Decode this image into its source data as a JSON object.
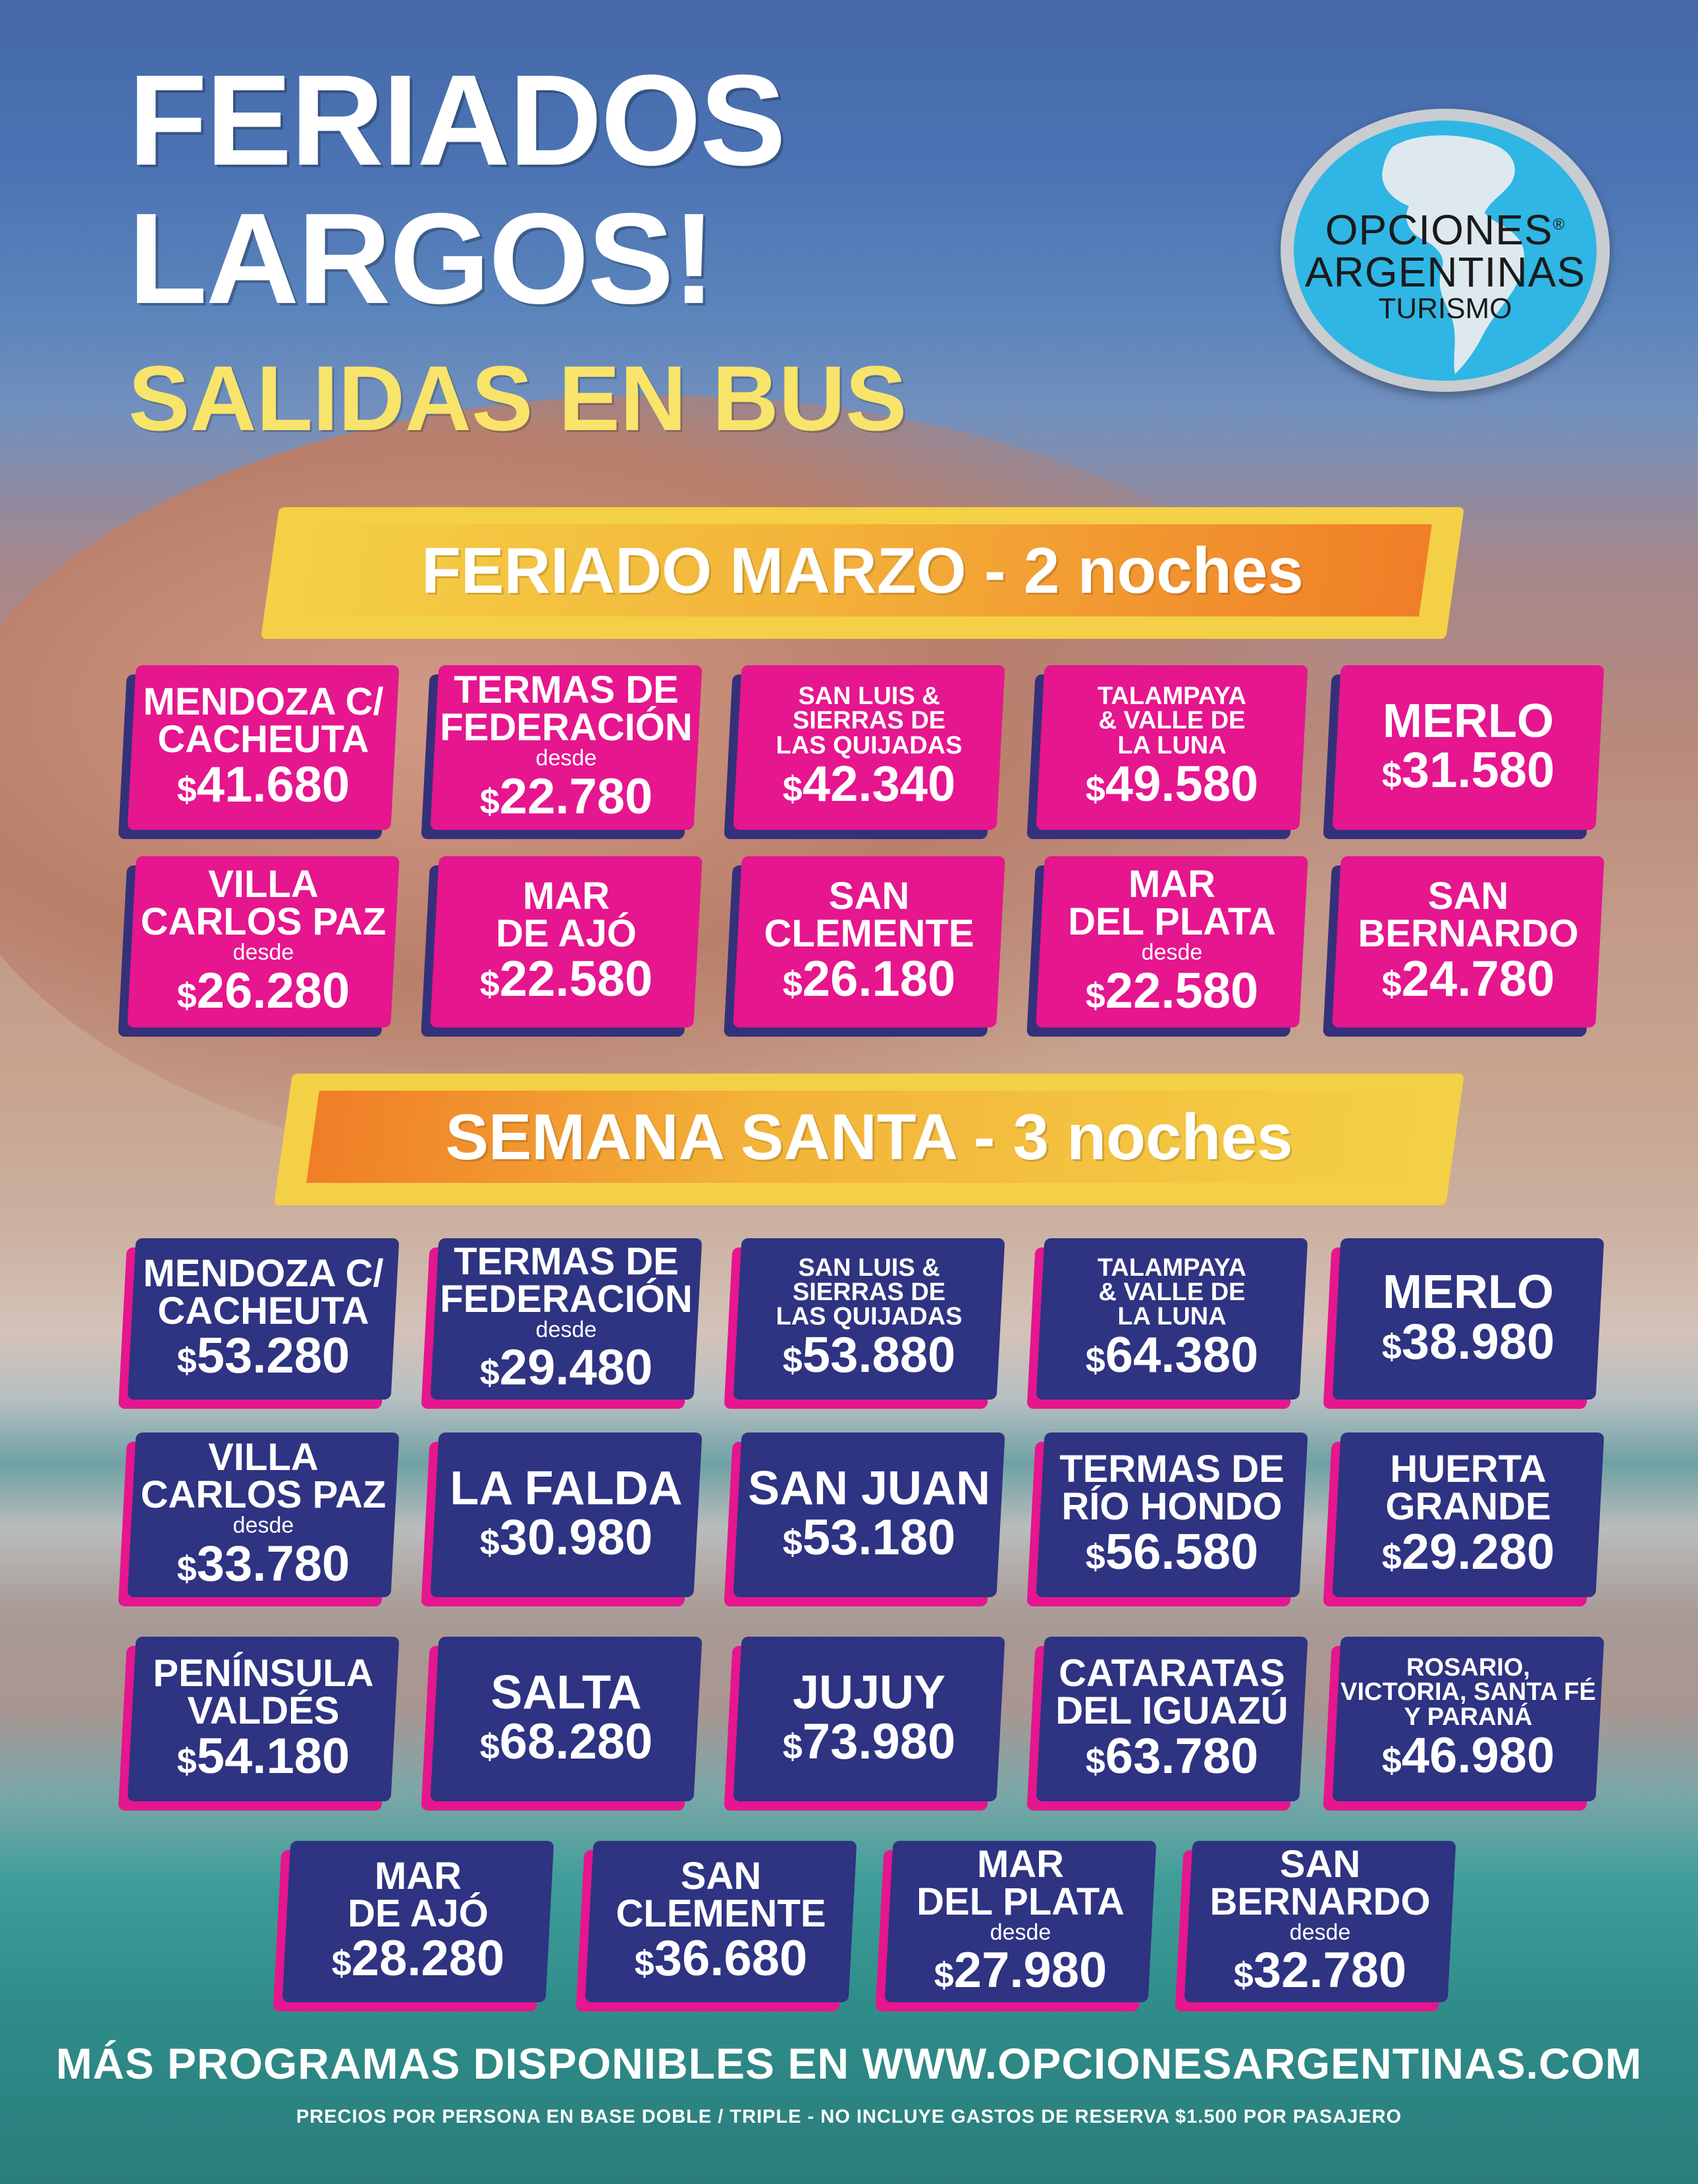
{
  "header": {
    "title_line1": "FERIADOS",
    "title_line2": "LARGOS!",
    "subtitle": "SALIDAS EN BUS"
  },
  "logo": {
    "line1": "OPCIONES",
    "registered": "®",
    "line2": "ARGENTINAS",
    "line3": "TURISMO"
  },
  "colors": {
    "pink": "#e5168e",
    "navy": "#2e3382",
    "yellow": "#f4d046",
    "orange": "#f07e27"
  },
  "sections": [
    {
      "title": "FERIADO MARZO - 2 noches",
      "cards": [
        {
          "name": "MENDOZA C/\nCACHEUTA",
          "desde": "",
          "currency": "$",
          "price": "41.680"
        },
        {
          "name": "TERMAS DE\nFEDERACIÓN",
          "desde": "desde",
          "currency": "$",
          "price": "22.780"
        },
        {
          "name": "SAN LUIS &\nSIERRAS DE\nLAS QUIJADAS",
          "desde": "",
          "currency": "$",
          "price": "42.340"
        },
        {
          "name": "TALAMPAYA\n& VALLE DE\nLA LUNA",
          "desde": "",
          "currency": "$",
          "price": "49.580"
        },
        {
          "name": "MERLO",
          "desde": "",
          "currency": "$",
          "price": "31.580"
        },
        {
          "name": "VILLA\nCARLOS PAZ",
          "desde": "desde",
          "currency": "$",
          "price": "26.280"
        },
        {
          "name": "MAR\nDE AJÓ",
          "desde": "",
          "currency": "$",
          "price": "22.580"
        },
        {
          "name": "SAN\nCLEMENTE",
          "desde": "",
          "currency": "$",
          "price": "26.180"
        },
        {
          "name": "MAR\nDEL PLATA",
          "desde": "desde",
          "currency": "$",
          "price": "22.580"
        },
        {
          "name": "SAN\nBERNARDO",
          "desde": "",
          "currency": "$",
          "price": "24.780"
        }
      ]
    },
    {
      "title": "SEMANA SANTA - 3 noches",
      "cards": [
        {
          "name": "MENDOZA C/\nCACHEUTA",
          "desde": "",
          "currency": "$",
          "price": "53.280"
        },
        {
          "name": "TERMAS DE\nFEDERACIÓN",
          "desde": "desde",
          "currency": "$",
          "price": "29.480"
        },
        {
          "name": "SAN LUIS &\nSIERRAS DE\nLAS QUIJADAS",
          "desde": "",
          "currency": "$",
          "price": "53.880"
        },
        {
          "name": "TALAMPAYA\n& VALLE DE\nLA LUNA",
          "desde": "",
          "currency": "$",
          "price": "64.380"
        },
        {
          "name": "MERLO",
          "desde": "",
          "currency": "$",
          "price": "38.980"
        },
        {
          "name": "VILLA\nCARLOS PAZ",
          "desde": "desde",
          "currency": "$",
          "price": "33.780"
        },
        {
          "name": "LA FALDA",
          "desde": "",
          "currency": "$",
          "price": "30.980"
        },
        {
          "name": "SAN JUAN",
          "desde": "",
          "currency": "$",
          "price": "53.180"
        },
        {
          "name": "TERMAS DE\nRÍO HONDO",
          "desde": "",
          "currency": "$",
          "price": "56.580"
        },
        {
          "name": "HUERTA\nGRANDE",
          "desde": "",
          "currency": "$",
          "price": "29.280"
        },
        {
          "name": "PENÍNSULA\nVALDÉS",
          "desde": "",
          "currency": "$",
          "price": "54.180"
        },
        {
          "name": "SALTA",
          "desde": "",
          "currency": "$",
          "price": "68.280"
        },
        {
          "name": "JUJUY",
          "desde": "",
          "currency": "$",
          "price": "73.980"
        },
        {
          "name": "CATARATAS\nDEL IGUAZÚ",
          "desde": "",
          "currency": "$",
          "price": "63.780"
        },
        {
          "name": "ROSARIO,\nVICTORIA, SANTA FÉ\nY PARANÁ",
          "desde": "",
          "currency": "$",
          "price": "46.980"
        },
        {
          "name": "MAR\nDE AJÓ",
          "desde": "",
          "currency": "$",
          "price": "28.280"
        },
        {
          "name": "SAN\nCLEMENTE",
          "desde": "",
          "currency": "$",
          "price": "36.680"
        },
        {
          "name": "MAR\nDEL PLATA",
          "desde": "desde",
          "currency": "$",
          "price": "27.980"
        },
        {
          "name": "SAN\nBERNARDO",
          "desde": "desde",
          "currency": "$",
          "price": "32.780"
        }
      ]
    }
  ],
  "footer": {
    "more_programs": "MÁS PROGRAMAS DISPONIBLES EN WWW.OPCIONESARGENTINAS.COM",
    "disclaimer": "PRECIOS POR PERSONA EN BASE DOBLE / TRIPLE - NO INCLUYE GASTOS DE RESERVA $1.500 POR PASAJERO"
  }
}
